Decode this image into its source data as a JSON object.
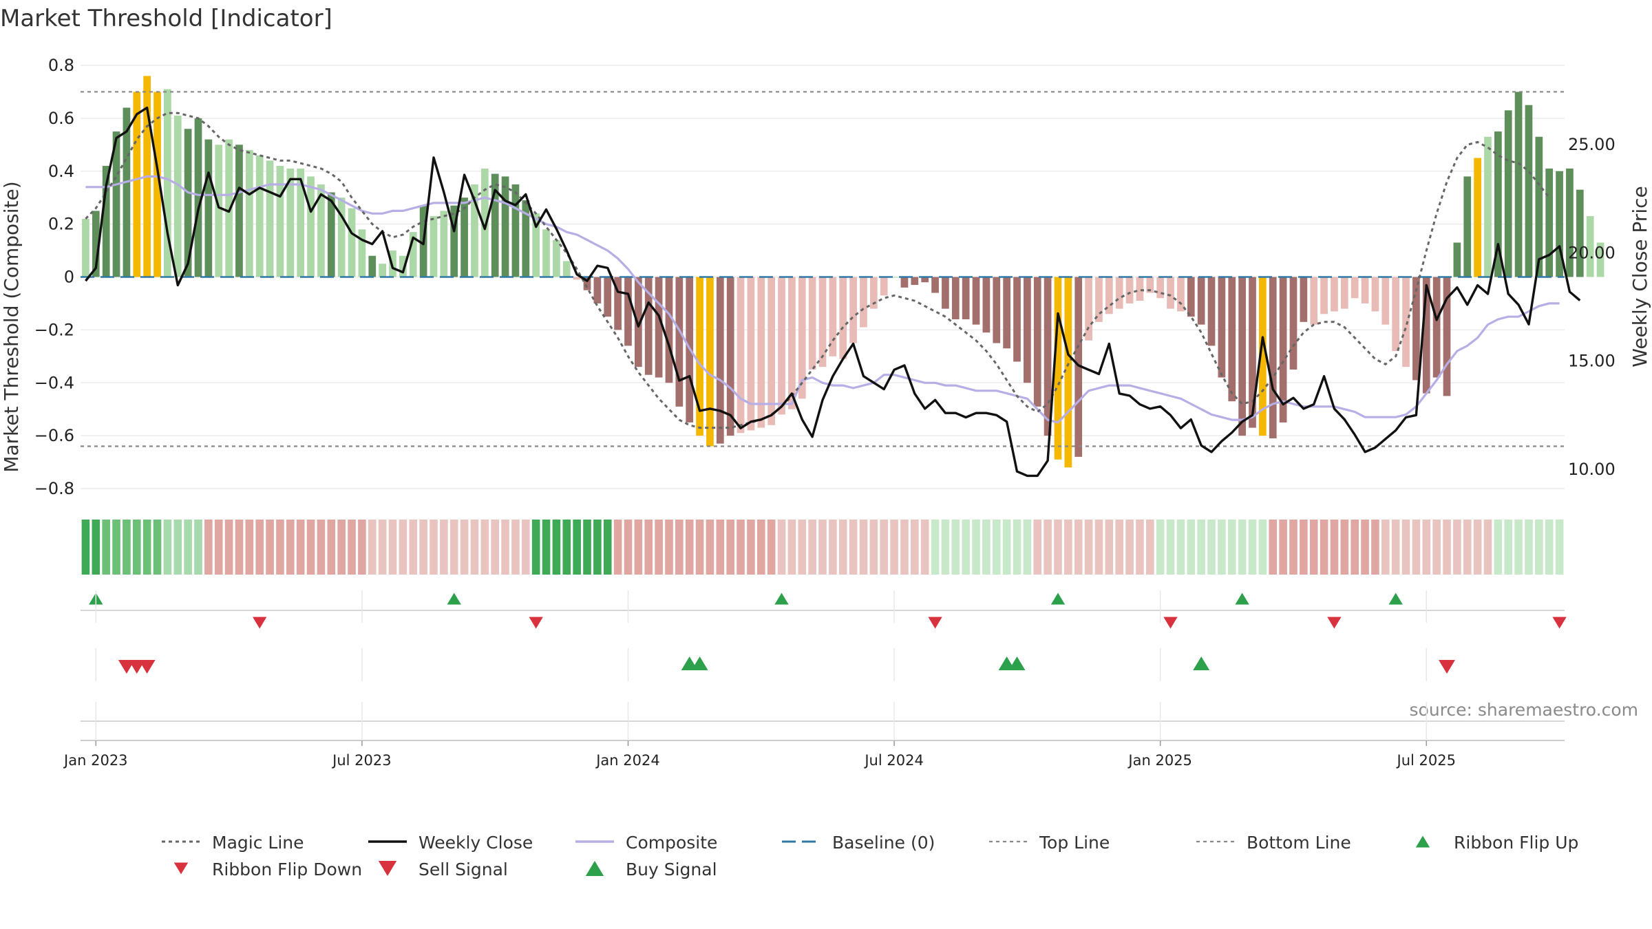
{
  "title": "Market Threshold [Indicator]",
  "source_note": "source: sharemaestro.com",
  "colors": {
    "bull_dark": "#5e8e5a",
    "bull_light": "#acd8a7",
    "bear_dark": "#a36f6c",
    "bear_light": "#e8bbb6",
    "highlight": "#f5b800",
    "weekly_close": "#111111",
    "magic_line": "#666666",
    "composite": "#b7aee6",
    "baseline": "#2f78a6",
    "threshold_lines": "#888888",
    "buy": "#2ca04a",
    "sell": "#d8323f",
    "source": "#8a8a8a"
  },
  "chart_data": {
    "type": "bar",
    "title": "Market Threshold [Indicator]",
    "ylabel": "Market Threshold (Composite)",
    "y2label": "Weekly Close Price",
    "ylim": [
      -0.8,
      0.8
    ],
    "y2lim": [
      10.0,
      25.0
    ],
    "y_ticks": [
      "0.8",
      "0.6",
      "0.4",
      "0.2",
      "0",
      "−0.2",
      "−0.4",
      "−0.6",
      "−0.8"
    ],
    "y_tick_values": [
      0.8,
      0.6,
      0.4,
      0.2,
      0,
      -0.2,
      -0.4,
      -0.6,
      -0.8
    ],
    "y2_ticks": [
      "25.00",
      "20.00",
      "15.00",
      "10.00"
    ],
    "y2_tick_values": [
      25,
      20,
      15,
      10
    ],
    "x_ticks": [
      "Jan 2023",
      "Jul 2023",
      "Jan 2024",
      "Jul 2024",
      "Jan 2025",
      "Jul 2025"
    ],
    "x_tick_weeks": [
      1,
      27,
      53,
      79,
      105,
      131
    ],
    "week_count": 145,
    "top_line": 0.7,
    "bottom_line": -0.64,
    "legend_location": "bottom",
    "grid": true,
    "threshold_bars": [
      0.22,
      0.25,
      0.42,
      0.55,
      0.64,
      0.7,
      0.76,
      0.7,
      0.71,
      0.61,
      0.56,
      0.6,
      0.52,
      0.5,
      0.52,
      0.5,
      0.48,
      0.46,
      0.44,
      0.42,
      0.41,
      0.41,
      0.38,
      0.35,
      0.32,
      0.3,
      0.26,
      0.18,
      0.08,
      0.05,
      0.1,
      0.08,
      0.17,
      0.27,
      0.23,
      0.25,
      0.27,
      0.3,
      0.35,
      0.41,
      0.39,
      0.38,
      0.35,
      0.29,
      0.24,
      0.18,
      0.14,
      0.06,
      -0.01,
      -0.05,
      -0.1,
      -0.15,
      -0.2,
      -0.26,
      -0.34,
      -0.37,
      -0.38,
      -0.4,
      -0.49,
      -0.55,
      -0.6,
      -0.64,
      -0.63,
      -0.6,
      -0.59,
      -0.58,
      -0.57,
      -0.56,
      -0.52,
      -0.5,
      -0.46,
      -0.35,
      -0.34,
      -0.3,
      -0.31,
      -0.25,
      -0.19,
      -0.12,
      -0.07,
      0,
      -0.04,
      -0.03,
      -0.02,
      -0.06,
      -0.12,
      -0.16,
      -0.16,
      -0.18,
      -0.21,
      -0.25,
      -0.27,
      -0.32,
      -0.4,
      -0.49,
      -0.6,
      -0.69,
      -0.72,
      -0.68,
      -0.24,
      -0.17,
      -0.14,
      -0.12,
      -0.1,
      -0.09,
      -0.06,
      -0.08,
      -0.12,
      -0.13,
      -0.15,
      -0.18,
      -0.26,
      -0.38,
      -0.47,
      -0.6,
      -0.57,
      -0.6,
      -0.61,
      -0.55,
      -0.35,
      -0.17,
      -0.18,
      -0.14,
      -0.13,
      -0.12,
      -0.08,
      -0.1,
      -0.13,
      -0.18,
      -0.28,
      -0.34,
      -0.39,
      -0.44,
      -0.38,
      -0.45,
      0.13,
      0.38,
      0.45,
      0.53,
      0.55,
      0.63,
      0.7,
      0.65,
      0.53,
      0.41,
      0.4,
      0.41,
      0.33,
      0.23,
      0.13
    ],
    "bar_shades": "lddddhhhlldddlldlllllllldllldlllldllddllddddllllldddddddddddddddhhllllllllllllllddddddddddddddddddhhllllllllddddddddddddhlllllllllddddddlldddddddddlllll",
    "weekly_close": [
      18.7,
      19.3,
      23.1,
      25.3,
      25.6,
      26.4,
      26.7,
      23.9,
      20.9,
      18.5,
      19.5,
      22.0,
      23.7,
      22.1,
      21.9,
      23.0,
      22.7,
      23.0,
      22.8,
      22.6,
      23.4,
      23.4,
      21.9,
      22.7,
      22.4,
      21.7,
      20.9,
      20.6,
      20.4,
      21.0,
      19.3,
      19.1,
      20.7,
      20.4,
      24.4,
      22.8,
      21.0,
      23.6,
      22.4,
      21.1,
      22.9,
      22.4,
      22.2,
      22.7,
      21.2,
      22.0,
      21.1,
      20.1,
      19.0,
      18.7,
      19.4,
      19.3,
      18.2,
      18.1,
      16.6,
      17.7,
      17.1,
      15.7,
      14.1,
      14.3,
      12.7,
      12.8,
      12.7,
      12.5,
      11.9,
      12.2,
      12.3,
      12.5,
      12.9,
      13.5,
      12.3,
      11.5,
      13.2,
      14.3,
      15.1,
      15.8,
      14.3,
      14.0,
      13.7,
      14.6,
      14.8,
      13.5,
      12.8,
      13.2,
      12.6,
      12.6,
      12.4,
      12.6,
      12.6,
      12.5,
      12.2,
      9.9,
      9.7,
      9.7,
      10.4,
      17.2,
      15.3,
      14.8,
      14.6,
      14.4,
      15.8,
      13.5,
      13.4,
      13.0,
      12.8,
      12.9,
      12.5,
      11.9,
      12.3,
      11.1,
      10.8,
      11.3,
      11.7,
      12.2,
      12.5,
      16.1,
      13.7,
      13.0,
      13.3,
      12.8,
      13.0,
      14.3,
      12.8,
      12.3,
      11.6,
      10.8,
      11.0,
      11.4,
      11.8,
      12.4,
      12.5,
      18.5,
      16.9,
      17.9,
      18.4,
      17.6,
      18.5,
      18.1,
      20.4,
      18.1,
      17.6,
      16.7,
      19.7,
      19.9,
      20.3,
      18.2,
      17.8
    ],
    "magic_line": [
      0.22,
      0.26,
      0.32,
      0.38,
      0.45,
      0.52,
      0.57,
      0.6,
      0.62,
      0.62,
      0.61,
      0.6,
      0.57,
      0.53,
      0.5,
      0.48,
      0.47,
      0.46,
      0.45,
      0.44,
      0.44,
      0.43,
      0.42,
      0.41,
      0.39,
      0.36,
      0.3,
      0.25,
      0.2,
      0.17,
      0.15,
      0.16,
      0.19,
      0.21,
      0.22,
      0.23,
      0.24,
      0.26,
      0.3,
      0.33,
      0.35,
      0.34,
      0.32,
      0.28,
      0.24,
      0.19,
      0.14,
      0.09,
      0.03,
      -0.04,
      -0.11,
      -0.17,
      -0.23,
      -0.3,
      -0.36,
      -0.41,
      -0.46,
      -0.5,
      -0.54,
      -0.56,
      -0.57,
      -0.57,
      -0.57,
      -0.57,
      -0.56,
      -0.55,
      -0.54,
      -0.52,
      -0.49,
      -0.45,
      -0.4,
      -0.35,
      -0.3,
      -0.24,
      -0.19,
      -0.15,
      -0.12,
      -0.1,
      -0.08,
      -0.07,
      -0.08,
      -0.09,
      -0.11,
      -0.13,
      -0.15,
      -0.18,
      -0.21,
      -0.24,
      -0.28,
      -0.33,
      -0.39,
      -0.45,
      -0.49,
      -0.51,
      -0.48,
      -0.41,
      -0.33,
      -0.26,
      -0.19,
      -0.14,
      -0.11,
      -0.08,
      -0.06,
      -0.05,
      -0.05,
      -0.06,
      -0.07,
      -0.1,
      -0.15,
      -0.21,
      -0.29,
      -0.37,
      -0.44,
      -0.48,
      -0.47,
      -0.43,
      -0.38,
      -0.32,
      -0.26,
      -0.21,
      -0.18,
      -0.17,
      -0.17,
      -0.19,
      -0.23,
      -0.27,
      -0.31,
      -0.33,
      -0.3,
      -0.19,
      -0.05,
      0.1,
      0.24,
      0.36,
      0.45,
      0.5,
      0.51,
      0.49,
      0.46,
      0.44,
      0.43,
      0.4,
      0.35,
      0.3
    ],
    "composite": [
      0.34,
      0.34,
      0.34,
      0.35,
      0.36,
      0.37,
      0.38,
      0.38,
      0.37,
      0.35,
      0.32,
      0.31,
      0.31,
      0.31,
      0.31,
      0.32,
      0.33,
      0.34,
      0.35,
      0.35,
      0.35,
      0.35,
      0.34,
      0.33,
      0.31,
      0.29,
      0.27,
      0.25,
      0.24,
      0.24,
      0.25,
      0.25,
      0.26,
      0.27,
      0.28,
      0.28,
      0.28,
      0.28,
      0.29,
      0.3,
      0.29,
      0.28,
      0.26,
      0.24,
      0.22,
      0.2,
      0.19,
      0.17,
      0.16,
      0.14,
      0.12,
      0.1,
      0.07,
      0.03,
      -0.02,
      -0.06,
      -0.1,
      -0.14,
      -0.2,
      -0.27,
      -0.33,
      -0.37,
      -0.39,
      -0.42,
      -0.46,
      -0.48,
      -0.48,
      -0.48,
      -0.48,
      -0.48,
      -0.39,
      -0.38,
      -0.4,
      -0.41,
      -0.41,
      -0.42,
      -0.41,
      -0.4,
      -0.37,
      -0.37,
      -0.38,
      -0.39,
      -0.4,
      -0.4,
      -0.41,
      -0.41,
      -0.42,
      -0.43,
      -0.43,
      -0.43,
      -0.44,
      -0.45,
      -0.46,
      -0.5,
      -0.54,
      -0.55,
      -0.51,
      -0.47,
      -0.43,
      -0.42,
      -0.41,
      -0.41,
      -0.41,
      -0.42,
      -0.43,
      -0.44,
      -0.45,
      -0.46,
      -0.48,
      -0.5,
      -0.52,
      -0.53,
      -0.54,
      -0.54,
      -0.53,
      -0.5,
      -0.48,
      -0.47,
      -0.48,
      -0.49,
      -0.49,
      -0.49,
      -0.49,
      -0.5,
      -0.51,
      -0.53,
      -0.53,
      -0.53,
      -0.53,
      -0.52,
      -0.49,
      -0.44,
      -0.39,
      -0.33,
      -0.28,
      -0.26,
      -0.23,
      -0.18,
      -0.16,
      -0.15,
      -0.15,
      -0.13,
      -0.11,
      -0.1,
      -0.1
    ],
    "highlight_weeks": [
      5,
      6,
      7,
      60,
      61,
      95,
      96,
      115,
      136
    ],
    "ribbon_shades": "AABBBBBBbbbbccccccccccccccccCCCCCCCCCCCCCCCCAAAAAAAAccccccccccccccccCCCCCCCCCCCCCCCaaaaaaaaaaCCCCCCCCCCCCaaaaaaaaaaacccccccccccCCCCCCCCCCCaaaaaaaaaaaBBBBBBBBaaaaaa",
    "ribbon_flip_up_weeks": [
      1,
      36,
      68,
      95,
      113,
      128
    ],
    "ribbon_flip_down_weeks": [
      17,
      44,
      83,
      106,
      122,
      144
    ],
    "buy_signal_weeks": [
      59,
      60,
      90,
      91,
      109
    ],
    "sell_signal_weeks": [
      4,
      5,
      6,
      133
    ],
    "legend": [
      {
        "label": "Magic Line",
        "kind": "dotted"
      },
      {
        "label": "Weekly Close",
        "kind": "solid-black"
      },
      {
        "label": "Composite",
        "kind": "solid-lavender"
      },
      {
        "label": "Baseline (0)",
        "kind": "dashed-blue"
      },
      {
        "label": "Top Line",
        "kind": "dotted-gray"
      },
      {
        "label": "Bottom Line",
        "kind": "dotted-gray"
      },
      {
        "label": "Ribbon Flip Up",
        "kind": "triangle-up"
      },
      {
        "label": "Ribbon Flip Down",
        "kind": "triangle-down"
      },
      {
        "label": "Sell Signal",
        "kind": "triangle-down-large"
      },
      {
        "label": "Buy Signal",
        "kind": "triangle-up-large"
      }
    ]
  }
}
